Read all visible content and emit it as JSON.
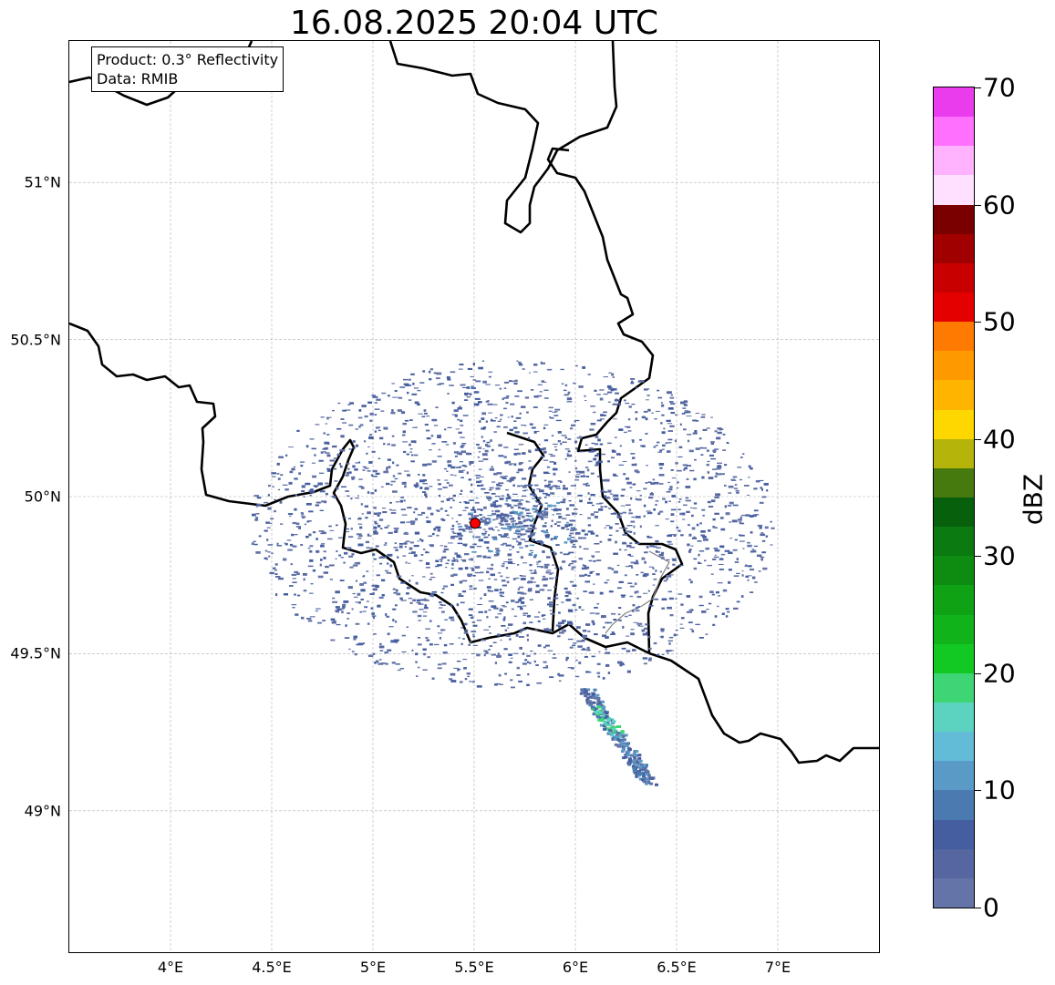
{
  "title": "16.08.2025 20:04 UTC",
  "info": {
    "product": "Product: 0.3° Reflectivity",
    "data_source": "Data: RMIB"
  },
  "map": {
    "extent": {
      "lon": [
        3.5,
        7.5
      ],
      "lat": [
        48.55,
        51.45
      ]
    },
    "x_ticks": [
      {
        "lon": 4.0,
        "label": "4°E"
      },
      {
        "lon": 4.5,
        "label": "4.5°E"
      },
      {
        "lon": 5.0,
        "label": "5°E"
      },
      {
        "lon": 5.5,
        "label": "5.5°E"
      },
      {
        "lon": 6.0,
        "label": "6°E"
      },
      {
        "lon": 6.5,
        "label": "6.5°E"
      },
      {
        "lon": 7.0,
        "label": "7°E"
      }
    ],
    "y_ticks": [
      {
        "lat": 51.0,
        "label": "51°N"
      },
      {
        "lat": 50.5,
        "label": "50.5°N"
      },
      {
        "lat": 50.0,
        "label": "50°N"
      },
      {
        "lat": 49.5,
        "label": "49.5°N"
      },
      {
        "lat": 49.0,
        "label": "49°N"
      }
    ],
    "radar_site": {
      "lon": 5.505,
      "lat": 49.915,
      "color": "#ff0000"
    },
    "gridlines": true
  },
  "colorbar": {
    "label": "dBZ",
    "min": 0,
    "max": 70,
    "ticks": [
      "0",
      "10",
      "20",
      "30",
      "40",
      "50",
      "60",
      "70"
    ],
    "colors": [
      "#6474a8",
      "#5566a0",
      "#445ea0",
      "#4a7ab0",
      "#5a9ac6",
      "#62bcd8",
      "#5cd2c0",
      "#3ed674",
      "#12c822",
      "#10b41a",
      "#0ea214",
      "#0e8c12",
      "#0b7a10",
      "#06600c",
      "#467a0e",
      "#b4b40a",
      "#ffd700",
      "#ffb400",
      "#ff9900",
      "#ff7a00",
      "#e50000",
      "#c80000",
      "#a00000",
      "#7a0000",
      "#ffe0ff",
      "#ffb3ff",
      "#ff70ff",
      "#ea3ced"
    ]
  }
}
